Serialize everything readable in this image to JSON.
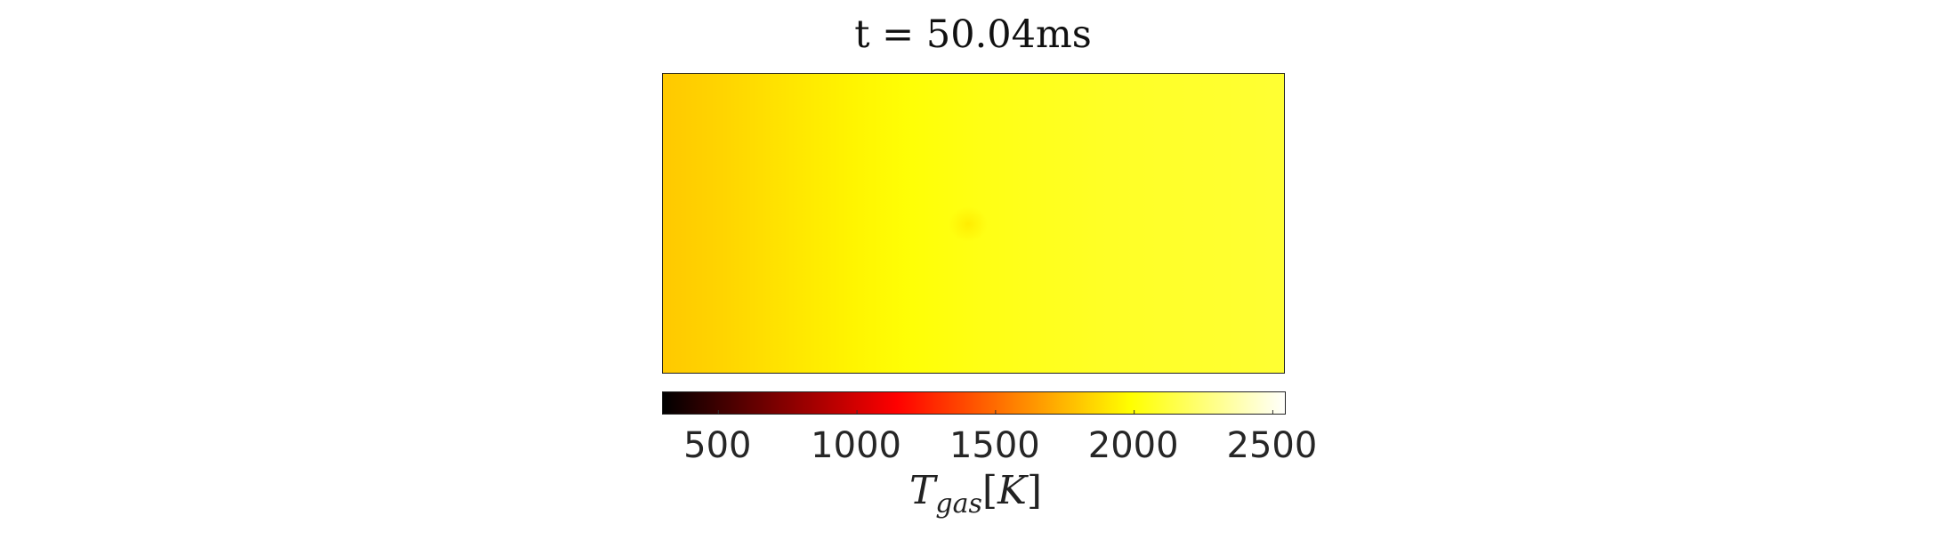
{
  "chart_data": {
    "type": "heatmap",
    "title": "t = 50.04ms",
    "field": {
      "quantity": "T_gas",
      "unit": "K",
      "x_profile_K": [
        1810,
        1850,
        1900,
        1950,
        2000,
        2030,
        2050,
        2070,
        2080,
        2090,
        2100
      ],
      "hot_spot": {
        "x_fraction": 0.49,
        "y_fraction": 0.5,
        "value_K": 1920
      }
    },
    "colorbar": {
      "label_var": "T",
      "label_sub": "gas",
      "label_unit": "K",
      "colormap": "hot",
      "clim": [
        300,
        2550
      ],
      "ticks": [
        500,
        1000,
        1500,
        2000,
        2500
      ],
      "tick_labels": [
        "500",
        "1000",
        "1500",
        "2000",
        "2500"
      ]
    }
  }
}
